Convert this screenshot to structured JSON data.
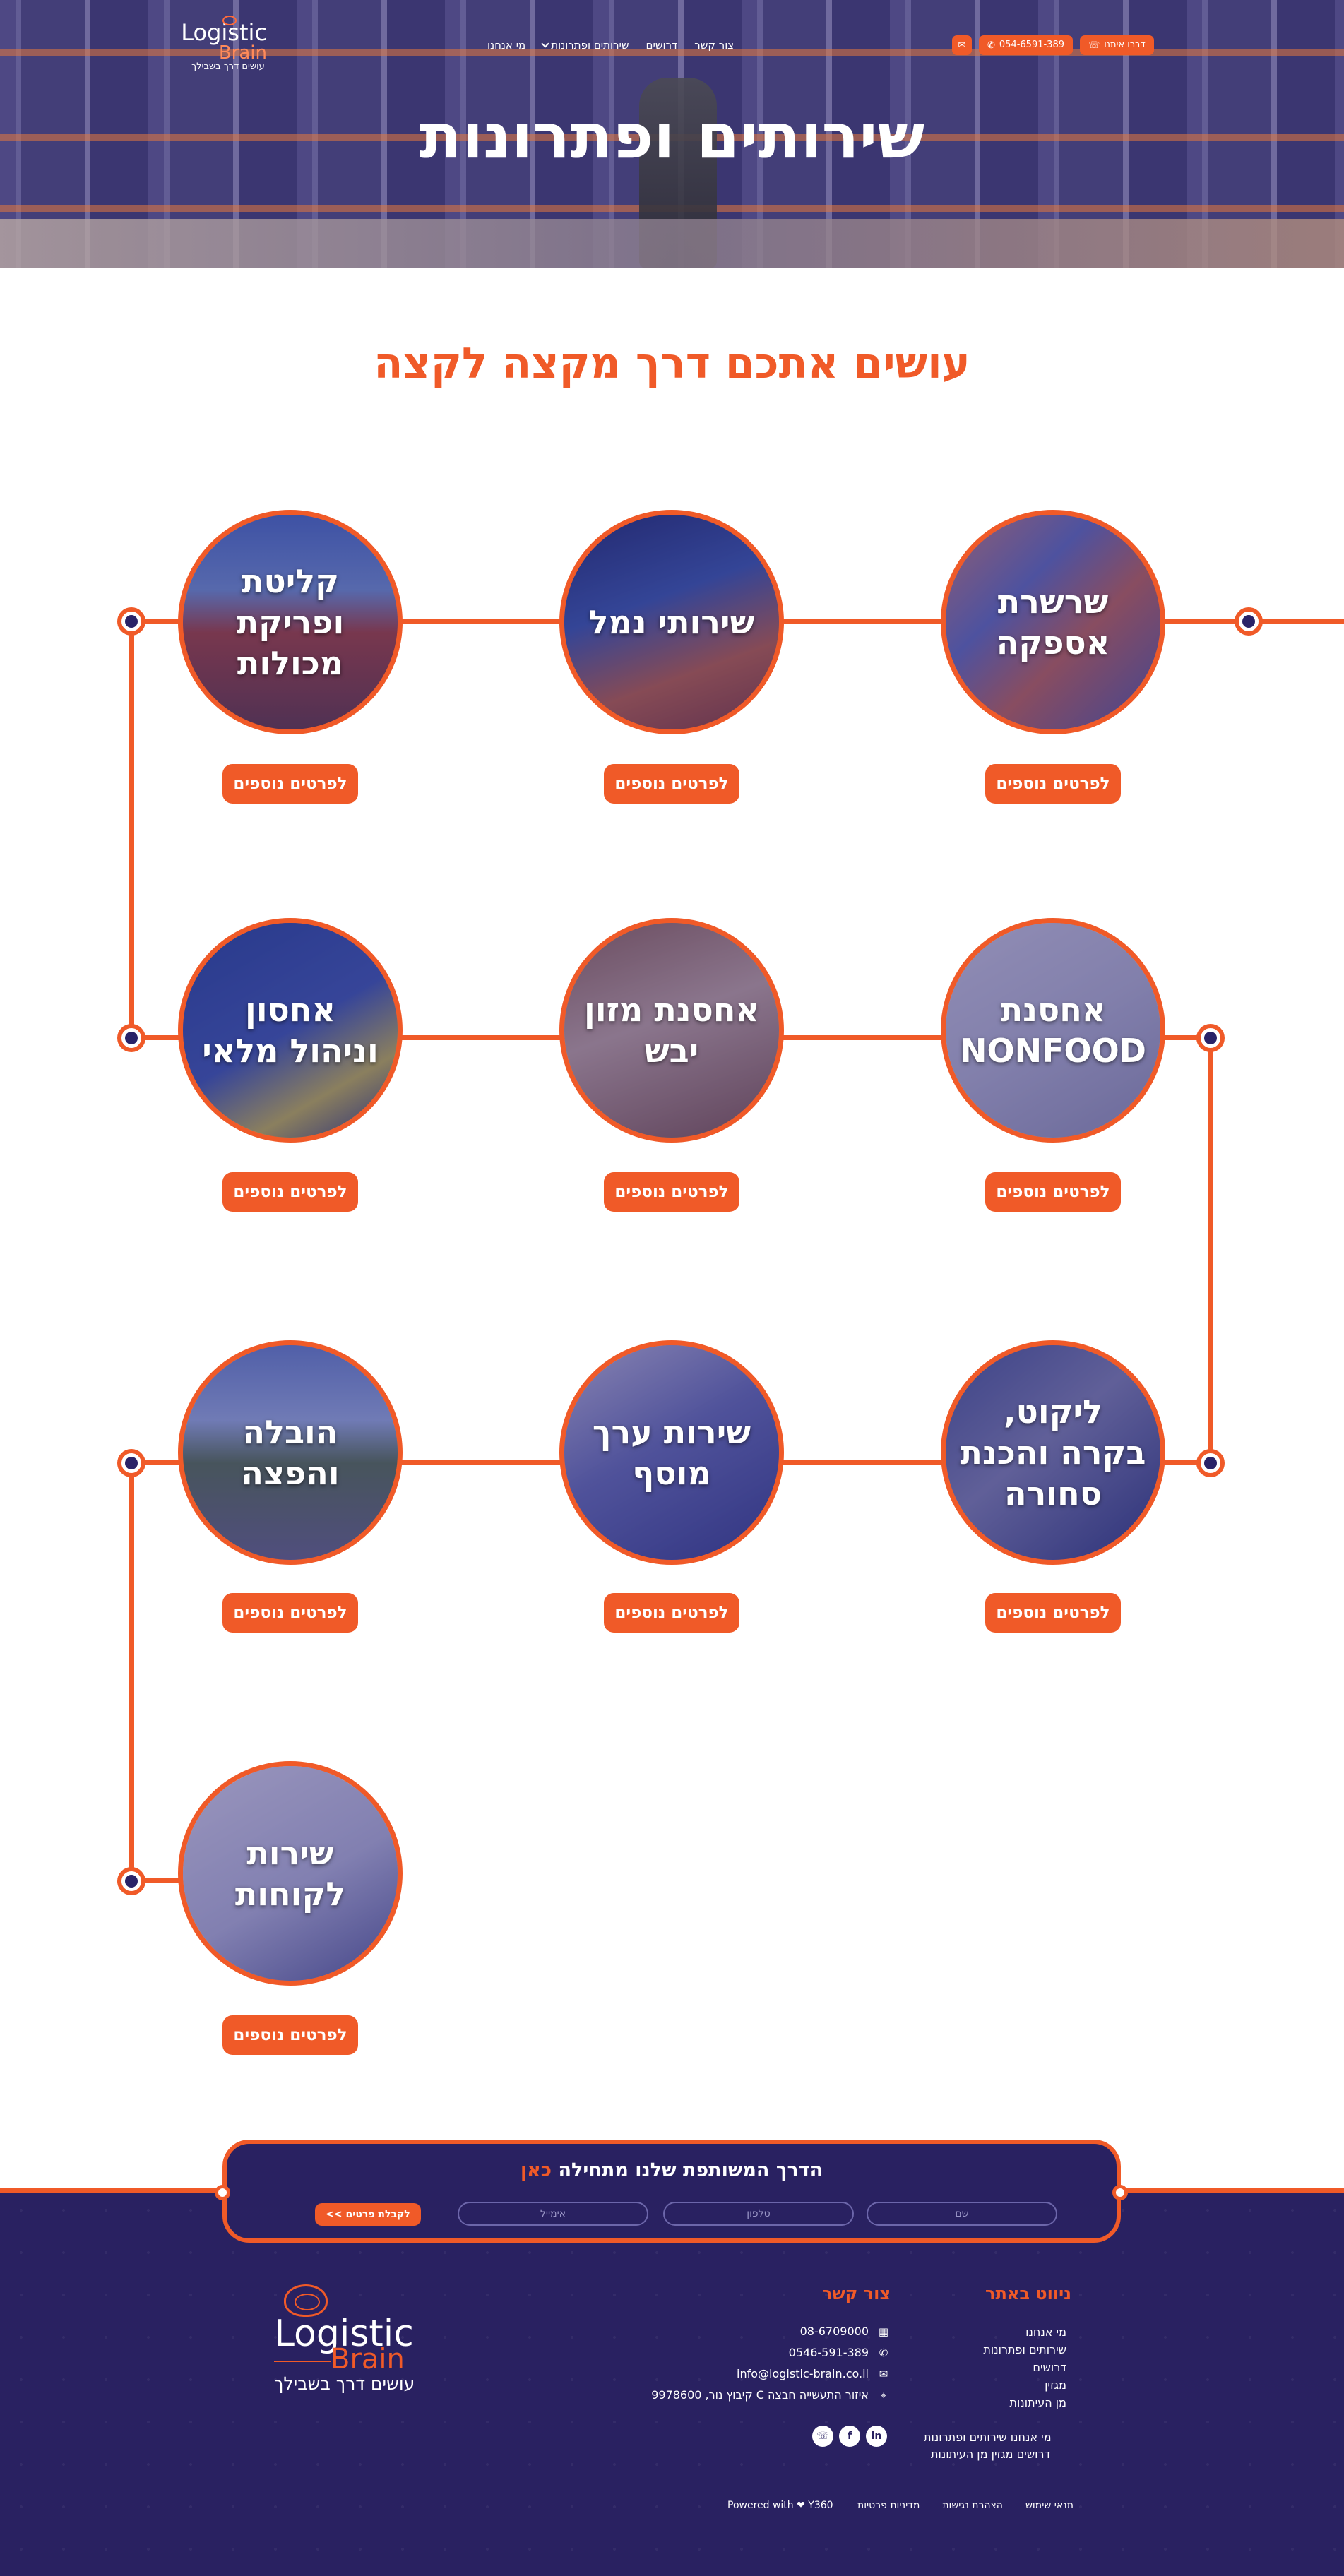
{
  "header": {
    "logo": {
      "name": "Logistic",
      "sub": "Brain",
      "tagline": "עושים דרך בשבילך"
    },
    "nav": [
      {
        "label": "מי אנחנו"
      },
      {
        "label": "שירותים ופתרונות",
        "dropdown": true
      },
      {
        "label": "דרושים"
      },
      {
        "label": "צור קשר"
      }
    ],
    "contact_us_label": "דברו איתנו",
    "phone_label": "054-6591-389"
  },
  "hero": {
    "title": "שירותים ופתרונות"
  },
  "services_title": "עושים אתכם דרך מקצה לקצה",
  "services": [
    {
      "title": "שרשרת אספקה",
      "button": "לפרטים נוספים"
    },
    {
      "title": "שירותי נמל",
      "button": "לפרטים נוספים"
    },
    {
      "title": "קליטת ופריקת מכולות",
      "button": "לפרטים נוספים"
    },
    {
      "title": "אחסנת NONFOOD",
      "button": "לפרטים נוספים"
    },
    {
      "title": "אחסנת מזון יבש",
      "button": "לפרטים נוספים"
    },
    {
      "title": "אחסון וניהול מלאי",
      "button": "לפרטים נוספים"
    },
    {
      "title": "ליקוט, בקרה והכנת סחורה",
      "button": "לפרטים נוספים"
    },
    {
      "title": "שירות ערך מוסף",
      "button": "לפרטים נוספים"
    },
    {
      "title": "הובלה והפצה",
      "button": "לפרטים נוספים"
    },
    {
      "title": "שירות לקוחות",
      "button": "לפרטים נוספים"
    }
  ],
  "cta": {
    "title": "הדרך המשותפת שלנו מתחילה",
    "title_highlight": "כאן",
    "fields": {
      "name": "שם",
      "phone": "טלפון",
      "email": "אימייל"
    },
    "submit": "לקבלת פרטים >>"
  },
  "footer": {
    "logo": {
      "name": "Logistic",
      "sub": "Brain",
      "tagline": "עושים דרך בשבילך"
    },
    "nav_title": "ניווט באתר",
    "nav_links": [
      "מי אנחנו",
      "שירותים ופתרונות",
      "דרושים",
      "מגזין",
      "מן העיתונות"
    ],
    "nav_inline_1": "מי אנחנו  שירותים ופתרונות",
    "nav_inline_2": "דרושים  מגזין  מן העיתונות",
    "contact_title": "צור קשר",
    "contact": {
      "fax": "08-6709000",
      "phone": "0546-591-389",
      "email": "info@logistic-brain.co.il",
      "address": "איזור התעשייה חבצה C קיבוץ נור, 9978600"
    },
    "bottom_links": [
      "תנאי שימוש",
      "הצהרת נגישות",
      "מדיניות פרטיות"
    ],
    "powered": "Powered with ❤ Y360"
  },
  "colors": {
    "accent": "#f05a28",
    "navy": "#292161"
  },
  "icons": [
    "whatsapp-icon",
    "phone-icon",
    "mail-icon",
    "fax-icon",
    "location-icon",
    "linkedin-icon",
    "facebook-icon"
  ]
}
